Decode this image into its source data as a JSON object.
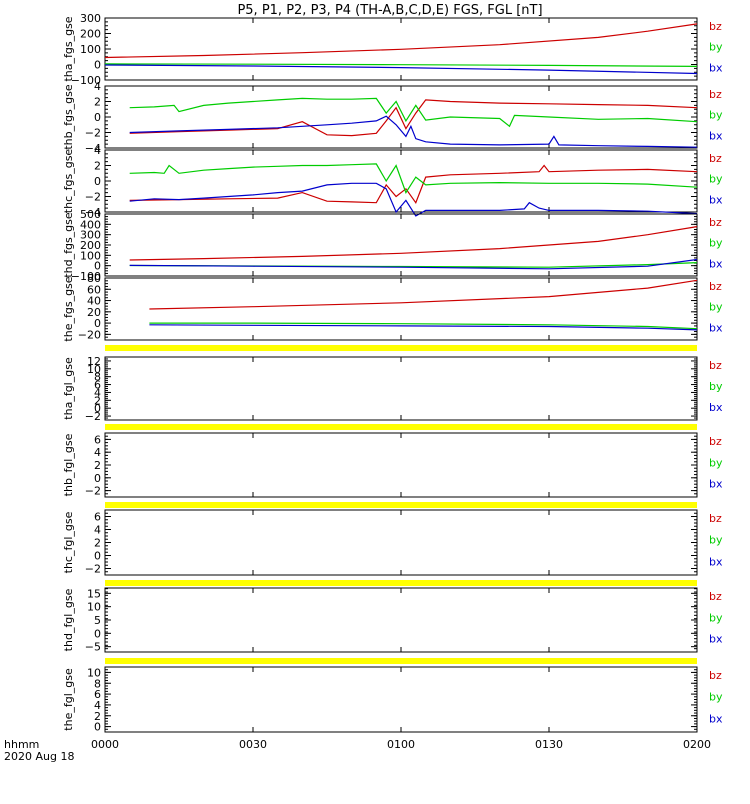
{
  "chart_data": {
    "type": "line",
    "title": "P5, P1, P2, P3, P4 (TH-A,B,C,D,E) FGS, FGL [nT]",
    "x_axis": {
      "label_line1": "hhmm",
      "label_line2": "2020 Aug 18",
      "range_minutes": [
        0,
        120
      ],
      "ticks": [
        {
          "t": 0,
          "label": "0000"
        },
        {
          "t": 30,
          "label": "0030"
        },
        {
          "t": 60,
          "label": "0100"
        },
        {
          "t": 90,
          "label": "0130"
        },
        {
          "t": 120,
          "label": "0200"
        }
      ]
    },
    "legend_position": "right",
    "series_colors": {
      "bz": "#cc0000",
      "by": "#00cc00",
      "bx": "#0000cc"
    },
    "no_data_bar_color": "#ffff00",
    "panels": [
      {
        "ylabel": "tha_fgs_gse",
        "ylim": [
          -100,
          300
        ],
        "yticks": [
          {
            "v": 300,
            "label": "300"
          },
          {
            "v": 200,
            "label": "200"
          },
          {
            "v": 100,
            "label": "100"
          },
          {
            "v": 0,
            "label": "0"
          },
          {
            "v": -100,
            "label": "−100"
          }
        ],
        "legend": [
          "bz",
          "by",
          "bx"
        ],
        "series": [
          {
            "name": "bz",
            "t": [
              0,
              20,
              40,
              60,
              80,
              100,
              110,
              120
            ],
            "values": [
              45,
              58,
              76,
              98,
              128,
              175,
              215,
              262
            ]
          },
          {
            "name": "by",
            "t": [
              0,
              30,
              60,
              90,
              120
            ],
            "values": [
              4,
              2,
              -1,
              -6,
              -12
            ]
          },
          {
            "name": "bx",
            "t": [
              0,
              30,
              60,
              90,
              120
            ],
            "values": [
              -3,
              -10,
              -20,
              -36,
              -58
            ]
          }
        ]
      },
      {
        "ylabel": "thb_fgs_gse",
        "ylim": [
          -4,
          4
        ],
        "yticks": [
          {
            "v": 4,
            "label": "4"
          },
          {
            "v": 2,
            "label": "2"
          },
          {
            "v": 0,
            "label": "0"
          },
          {
            "v": -2,
            "label": "−2"
          },
          {
            "v": -4,
            "label": "−4"
          }
        ],
        "legend": [
          "bz",
          "by",
          "bx"
        ],
        "series": [
          {
            "name": "bz",
            "t": [
              5,
              15,
              25,
              35,
              40,
              45,
              50,
              55,
              57,
              59,
              61,
              63,
              65,
              70,
              80,
              90,
              100,
              110,
              120
            ],
            "values": [
              -2.1,
              -1.9,
              -1.7,
              -1.5,
              -0.6,
              -2.3,
              -2.4,
              -2.1,
              -0.5,
              1.2,
              -1.5,
              0.5,
              2.2,
              2.0,
              1.8,
              1.7,
              1.6,
              1.5,
              1.2
            ]
          },
          {
            "name": "by",
            "t": [
              5,
              10,
              14,
              15,
              20,
              25,
              30,
              35,
              40,
              45,
              50,
              55,
              57,
              59,
              61,
              63,
              65,
              70,
              80,
              82,
              83,
              90,
              100,
              110,
              120
            ],
            "values": [
              1.2,
              1.3,
              1.5,
              0.7,
              1.5,
              1.8,
              2.0,
              2.2,
              2.4,
              2.3,
              2.3,
              2.4,
              0.5,
              2.0,
              -0.5,
              1.5,
              -0.4,
              0.0,
              -0.2,
              -1.2,
              0.2,
              0.0,
              -0.3,
              -0.2,
              -0.6
            ]
          },
          {
            "name": "bx",
            "t": [
              5,
              15,
              25,
              35,
              40,
              45,
              50,
              55,
              57,
              59,
              61,
              62,
              63,
              65,
              70,
              80,
              90,
              91,
              92,
              100,
              110,
              120
            ],
            "values": [
              -2.0,
              -1.8,
              -1.6,
              -1.4,
              -1.2,
              -1.0,
              -0.8,
              -0.5,
              0.1,
              -1.0,
              -2.5,
              -1.2,
              -2.8,
              -3.2,
              -3.5,
              -3.6,
              -3.5,
              -2.5,
              -3.6,
              -3.7,
              -3.8,
              -3.9
            ]
          }
        ]
      },
      {
        "ylabel": "thc_fgs_gse",
        "ylim": [
          -4,
          4
        ],
        "yticks": [
          {
            "v": 4,
            "label": "4"
          },
          {
            "v": 2,
            "label": "2"
          },
          {
            "v": 0,
            "label": "0"
          },
          {
            "v": -2,
            "label": "−2"
          },
          {
            "v": -4,
            "label": "−4"
          }
        ],
        "legend": [
          "bz",
          "by",
          "bx"
        ],
        "series": [
          {
            "name": "bz",
            "t": [
              5,
              15,
              25,
              35,
              40,
              45,
              50,
              55,
              57,
              59,
              61,
              63,
              65,
              70,
              80,
              88,
              89,
              90,
              100,
              110,
              120
            ],
            "values": [
              -2.5,
              -2.4,
              -2.3,
              -2.2,
              -1.5,
              -2.6,
              -2.7,
              -2.8,
              -0.5,
              -2.0,
              -1.0,
              -2.8,
              0.5,
              0.8,
              1.0,
              1.2,
              2.0,
              1.2,
              1.4,
              1.5,
              1.2
            ]
          },
          {
            "name": "by",
            "t": [
              5,
              10,
              12,
              13,
              15,
              20,
              25,
              30,
              35,
              40,
              45,
              50,
              55,
              57,
              59,
              61,
              63,
              65,
              70,
              80,
              90,
              100,
              110,
              120
            ],
            "values": [
              1.0,
              1.1,
              1.0,
              2.0,
              1.0,
              1.4,
              1.6,
              1.8,
              1.9,
              2.0,
              2.0,
              2.1,
              2.2,
              0.0,
              2.0,
              -1.5,
              0.5,
              -0.5,
              -0.3,
              -0.2,
              -0.3,
              -0.3,
              -0.4,
              -0.8
            ]
          },
          {
            "name": "bx",
            "t": [
              5,
              10,
              15,
              20,
              25,
              30,
              35,
              40,
              45,
              50,
              55,
              57,
              59,
              61,
              63,
              65,
              70,
              80,
              85,
              86,
              88,
              90,
              100,
              110,
              120
            ],
            "values": [
              -2.6,
              -2.3,
              -2.4,
              -2.2,
              -2.0,
              -1.8,
              -1.5,
              -1.3,
              -0.5,
              -0.3,
              -0.3,
              -1.0,
              -4.0,
              -2.5,
              -4.5,
              -3.8,
              -3.8,
              -3.8,
              -3.6,
              -2.8,
              -3.5,
              -3.8,
              -3.8,
              -3.9,
              -4.2
            ]
          }
        ]
      },
      {
        "ylabel": "thd_fgs_gse",
        "ylim": [
          -100,
          500
        ],
        "yticks": [
          {
            "v": 500,
            "label": "500"
          },
          {
            "v": 400,
            "label": "400"
          },
          {
            "v": 300,
            "label": "300"
          },
          {
            "v": 200,
            "label": "200"
          },
          {
            "v": 100,
            "label": "100"
          },
          {
            "v": 0,
            "label": "0"
          },
          {
            "v": -100,
            "label": "−100"
          }
        ],
        "legend": [
          "bz",
          "by",
          "bx"
        ],
        "series": [
          {
            "name": "bz",
            "t": [
              5,
              20,
              40,
              60,
              80,
              100,
              110,
              120
            ],
            "values": [
              55,
              68,
              90,
              120,
              165,
              235,
              300,
              378
            ]
          },
          {
            "name": "by",
            "t": [
              5,
              30,
              60,
              90,
              110,
              120
            ],
            "values": [
              2,
              -3,
              -8,
              -15,
              10,
              30
            ]
          },
          {
            "name": "bx",
            "t": [
              5,
              30,
              60,
              90,
              110,
              120
            ],
            "values": [
              3,
              -5,
              -15,
              -30,
              -5,
              60
            ]
          }
        ]
      },
      {
        "ylabel": "the_fgs_gse",
        "ylim": [
          -30,
          80
        ],
        "yticks": [
          {
            "v": 80,
            "label": "80"
          },
          {
            "v": 60,
            "label": "60"
          },
          {
            "v": 40,
            "label": "40"
          },
          {
            "v": 20,
            "label": "20"
          },
          {
            "v": 0,
            "label": "0"
          },
          {
            "v": -20,
            "label": "−20"
          }
        ],
        "legend": [
          "bz",
          "by",
          "bx"
        ],
        "series": [
          {
            "name": "bz",
            "t": [
              9,
              30,
              60,
              90,
              110,
              120
            ],
            "values": [
              25,
              29,
              36,
              47,
              62,
              76
            ]
          },
          {
            "name": "by",
            "t": [
              9,
              30,
              60,
              90,
              110,
              120
            ],
            "values": [
              0,
              0,
              -1,
              -3,
              -6,
              -10
            ]
          },
          {
            "name": "bx",
            "t": [
              9,
              30,
              60,
              90,
              110,
              120
            ],
            "values": [
              -3,
              -4,
              -5,
              -6,
              -9,
              -12
            ]
          }
        ]
      },
      {
        "ylabel": "tha_fgl_gse",
        "ylim": [
          -3,
          13
        ],
        "yticks": [
          {
            "v": 12,
            "label": "12"
          },
          {
            "v": 10,
            "label": "10"
          },
          {
            "v": 8,
            "label": "8"
          },
          {
            "v": 6,
            "label": "6"
          },
          {
            "v": 4,
            "label": "4"
          },
          {
            "v": 2,
            "label": "2"
          },
          {
            "v": 0,
            "label": "0"
          },
          {
            "v": -2,
            "label": "−2"
          }
        ],
        "legend": [
          "bz",
          "by",
          "bx"
        ],
        "series": []
      },
      {
        "ylabel": "thb_fgl_gse",
        "ylim": [
          -3,
          7
        ],
        "yticks": [
          {
            "v": 6,
            "label": "6"
          },
          {
            "v": 4,
            "label": "4"
          },
          {
            "v": 2,
            "label": "2"
          },
          {
            "v": 0,
            "label": "0"
          },
          {
            "v": -2,
            "label": "−2"
          }
        ],
        "legend": [
          "bz",
          "by",
          "bx"
        ],
        "series": []
      },
      {
        "ylabel": "thc_fgl_gse",
        "ylim": [
          -3,
          7
        ],
        "yticks": [
          {
            "v": 6,
            "label": "6"
          },
          {
            "v": 4,
            "label": "4"
          },
          {
            "v": 2,
            "label": "2"
          },
          {
            "v": 0,
            "label": "0"
          },
          {
            "v": -2,
            "label": "−2"
          }
        ],
        "legend": [
          "bz",
          "by",
          "bx"
        ],
        "series": []
      },
      {
        "ylabel": "thd_fgl_gse",
        "ylim": [
          -7,
          17
        ],
        "yticks": [
          {
            "v": 15,
            "label": "15"
          },
          {
            "v": 10,
            "label": "10"
          },
          {
            "v": 5,
            "label": "5"
          },
          {
            "v": 0,
            "label": "0"
          },
          {
            "v": -5,
            "label": "−5"
          }
        ],
        "legend": [
          "bz",
          "by",
          "bx"
        ],
        "series": []
      },
      {
        "ylabel": "the_fgl_gse",
        "ylim": [
          -1,
          11
        ],
        "yticks": [
          {
            "v": 10,
            "label": "10"
          },
          {
            "v": 8,
            "label": "8"
          },
          {
            "v": 6,
            "label": "6"
          },
          {
            "v": 4,
            "label": "4"
          },
          {
            "v": 2,
            "label": "2"
          },
          {
            "v": 0,
            "label": "0"
          }
        ],
        "legend": [
          "bz",
          "by",
          "bx"
        ],
        "series": []
      }
    ]
  }
}
